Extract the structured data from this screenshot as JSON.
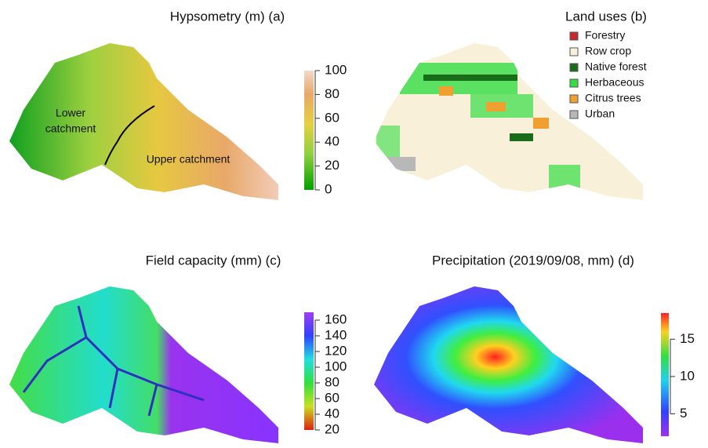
{
  "panels": [
    {
      "title": "Hypsometry (m) (a)",
      "colorbar": {
        "lim": [
          0,
          100
        ],
        "ticks": [
          0,
          20,
          40,
          60,
          80,
          100
        ]
      },
      "annotations": [
        "Lower",
        "catchment",
        "Upper catchment"
      ]
    },
    {
      "title": "Land uses (b)",
      "legend": [
        {
          "label": "Forestry",
          "color": "#c8282a"
        },
        {
          "label": "Row crop",
          "color": "#f8f0d8"
        },
        {
          "label": "Native forest",
          "color": "#1a6b1a"
        },
        {
          "label": "Herbaceous",
          "color": "#33dd44"
        },
        {
          "label": "Citrus trees",
          "color": "#f0a030"
        },
        {
          "label": "Urban",
          "color": "#b8b8b8"
        }
      ]
    },
    {
      "title": "Field capacity (mm) (c)",
      "colorbar": {
        "lim": [
          20,
          170
        ],
        "ticks": [
          20,
          40,
          60,
          80,
          100,
          120,
          140,
          160
        ]
      }
    },
    {
      "title": "Precipitation (2019/09/08, mm) (d)",
      "colorbar": {
        "lim": [
          2,
          18.5
        ],
        "ticks": [
          5,
          10,
          15
        ]
      }
    }
  ]
}
